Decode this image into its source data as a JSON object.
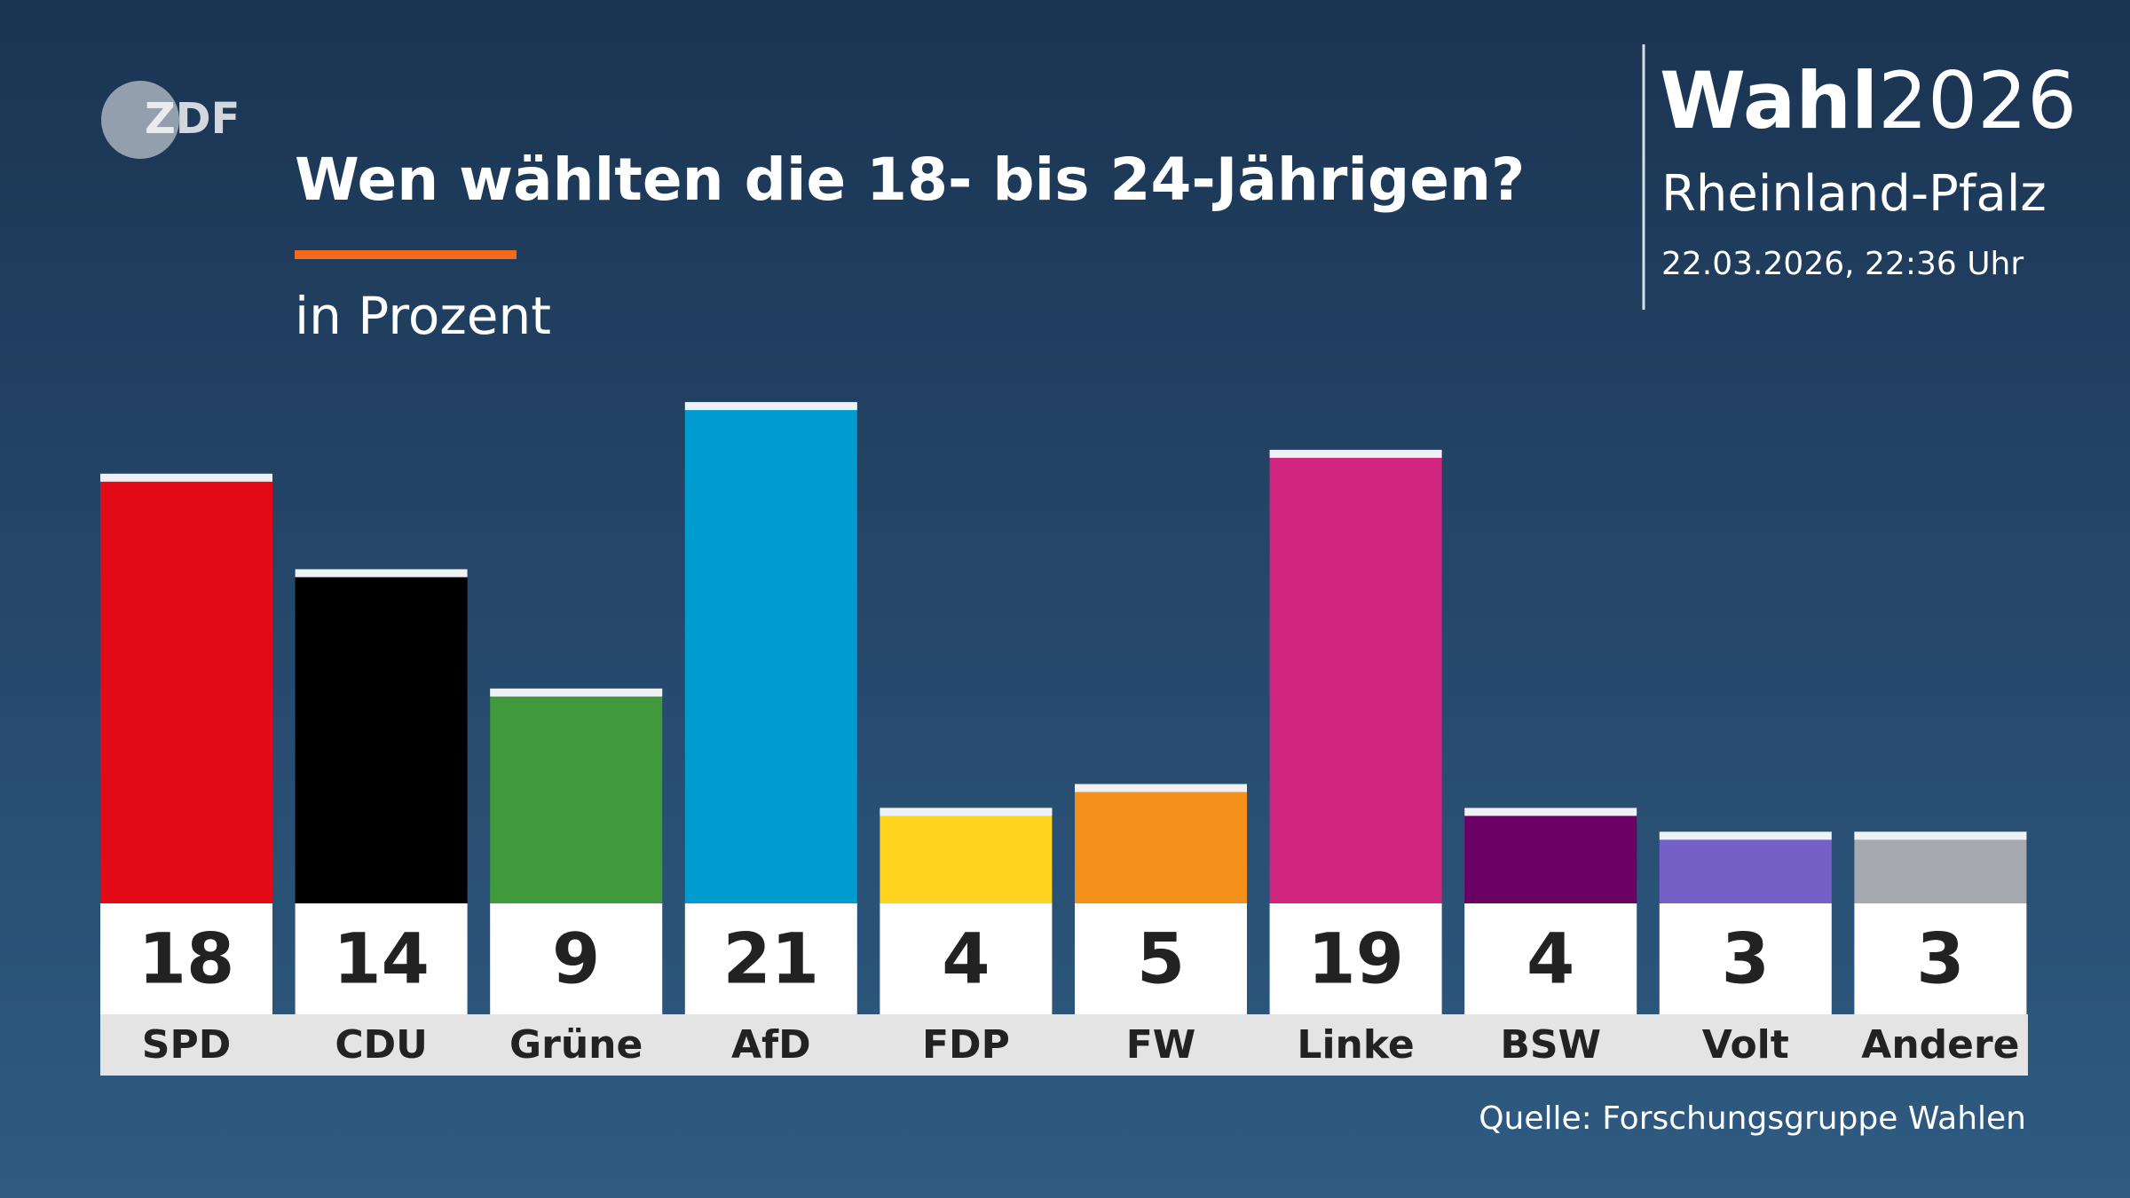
{
  "header": {
    "logo": "ZDF",
    "brand": "Wahl",
    "year": "2026",
    "region": "Rheinland-Pfalz",
    "timestamp": "22.03.2026, 22:36 Uhr"
  },
  "chart_data": {
    "type": "bar",
    "title": "Wen wählten die 18- bis 24-Jährigen?",
    "subtitle": "in Prozent",
    "categories": [
      "SPD",
      "CDU",
      "Grüne",
      "AfD",
      "FDP",
      "FW",
      "Linke",
      "BSW",
      "Volt",
      "Andere"
    ],
    "values": [
      18,
      14,
      9,
      21,
      4,
      5,
      19,
      4,
      3,
      3
    ],
    "colors": [
      "#e30a17",
      "#000000",
      "#409a3c",
      "#009ccf",
      "#fed41e",
      "#f39019",
      "#d02680",
      "#6a0063",
      "#7461c8",
      "#a6a9b0"
    ],
    "source": "Quelle: Forschungsgruppe Wahlen"
  }
}
